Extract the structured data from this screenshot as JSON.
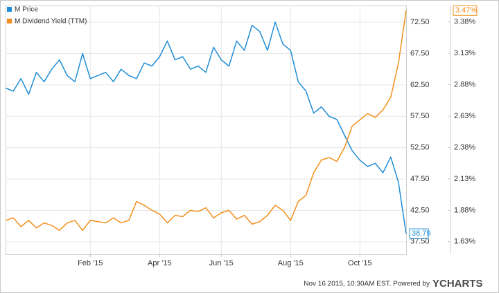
{
  "chart_data": {
    "type": "line",
    "categories": [
      null,
      null,
      null,
      null,
      null,
      null,
      null,
      null,
      null,
      null,
      null,
      "Feb '15",
      null,
      null,
      null,
      null,
      null,
      null,
      null,
      null,
      "Apr '15",
      null,
      null,
      null,
      null,
      null,
      null,
      null,
      "Jun '15",
      null,
      null,
      null,
      null,
      null,
      null,
      null,
      null,
      "Aug '15",
      null,
      null,
      null,
      null,
      null,
      null,
      null,
      null,
      "Oct '15",
      null,
      null,
      null,
      null,
      null,
      null
    ],
    "series": [
      {
        "name": "M Price",
        "color": "#1f8dd6",
        "values": [
          62.0,
          61.5,
          63.5,
          61.0,
          64.5,
          63.0,
          65.0,
          66.5,
          64.0,
          63.0,
          67.5,
          63.5,
          64.0,
          64.5,
          63.0,
          65.0,
          64.0,
          63.5,
          66.0,
          65.5,
          67.0,
          69.5,
          66.5,
          67.0,
          65.0,
          65.5,
          64.5,
          68.5,
          66.5,
          65.5,
          69.5,
          68.0,
          72.0,
          71.0,
          68.0,
          72.5,
          69.0,
          68.0,
          63.0,
          61.5,
          58.0,
          59.0,
          57.5,
          57.0,
          54.5,
          52.0,
          50.5,
          49.5,
          50.0,
          48.5,
          51.0,
          47.0,
          38.79
        ],
        "value_labels": [
          null,
          null,
          null,
          null,
          null,
          null,
          null,
          null,
          null,
          null,
          null,
          null,
          null,
          null,
          null,
          null,
          null,
          null,
          null,
          null,
          null,
          null,
          null,
          null,
          null,
          null,
          null,
          null,
          null,
          null,
          null,
          null,
          null,
          null,
          null,
          null,
          null,
          null,
          null,
          null,
          null,
          null,
          null,
          null,
          null,
          null,
          null,
          null,
          null,
          null,
          null,
          null,
          "38.79"
        ]
      },
      {
        "name": "M Dividend Yield (TTM)",
        "color": "#f28f1c",
        "axis": "y2",
        "values": [
          1.8,
          1.82,
          1.75,
          1.8,
          1.74,
          1.78,
          1.76,
          1.72,
          1.78,
          1.8,
          1.72,
          1.8,
          1.79,
          1.78,
          1.82,
          1.78,
          1.8,
          1.95,
          1.92,
          1.88,
          1.85,
          1.78,
          1.84,
          1.83,
          1.88,
          1.87,
          1.9,
          1.82,
          1.86,
          1.88,
          1.81,
          1.84,
          1.77,
          1.79,
          1.84,
          1.92,
          1.88,
          1.8,
          1.95,
          2.0,
          2.18,
          2.28,
          2.3,
          2.27,
          2.38,
          2.55,
          2.6,
          2.65,
          2.62,
          2.68,
          2.78,
          3.05,
          3.47
        ],
        "value_labels": [
          null,
          null,
          null,
          null,
          null,
          null,
          null,
          null,
          null,
          null,
          null,
          null,
          null,
          null,
          null,
          null,
          null,
          null,
          null,
          null,
          null,
          null,
          null,
          null,
          null,
          null,
          null,
          null,
          null,
          null,
          null,
          null,
          null,
          null,
          null,
          null,
          null,
          null,
          null,
          null,
          null,
          null,
          null,
          null,
          null,
          null,
          null,
          null,
          null,
          null,
          null,
          null,
          "3.47%"
        ]
      }
    ],
    "ylim": [
      35.5,
      75.15
    ],
    "yticks": [
      {
        "value": 37.5,
        "label": "37.50"
      },
      {
        "value": 42.5,
        "label": "42.50"
      },
      {
        "value": 47.5,
        "label": "47.50"
      },
      {
        "value": 52.5,
        "label": "52.50"
      },
      {
        "value": 57.5,
        "label": "57.50"
      },
      {
        "value": 62.5,
        "label": "62.50"
      },
      {
        "value": 67.5,
        "label": "67.50"
      },
      {
        "value": 72.5,
        "label": "72.50"
      }
    ],
    "y2lim": [
      1.53,
      3.51
    ],
    "y2ticks": [
      {
        "value": 1.63,
        "label": "1.63%"
      },
      {
        "value": 1.88,
        "label": "1.88%"
      },
      {
        "value": 2.13,
        "label": "2.13%"
      },
      {
        "value": 2.38,
        "label": "2.38%"
      },
      {
        "value": 2.63,
        "label": "2.63%"
      },
      {
        "value": 2.88,
        "label": "2.88%"
      },
      {
        "value": 3.13,
        "label": "3.13%"
      },
      {
        "value": 3.38,
        "label": "3.38%"
      }
    ],
    "grid": true,
    "legend": "top-left",
    "source": "Nov 16 2015, 10:30AM EST. Powered by",
    "logo": "YCHARTS"
  }
}
